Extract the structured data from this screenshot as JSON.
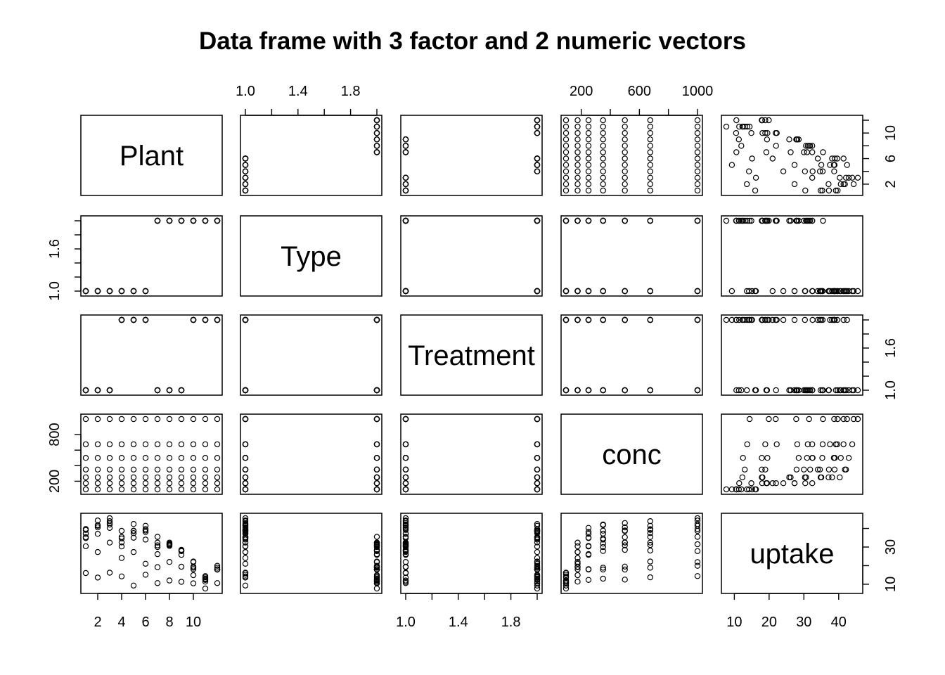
{
  "chart_data": {
    "type": "scatter",
    "title": "Data frame with 3 factor and 2 numeric vectors",
    "variables": [
      "Plant",
      "Type",
      "Treatment",
      "conc",
      "uptake"
    ],
    "ticks": {
      "Plant": [
        "2",
        "4",
        "6",
        "8",
        "10"
      ],
      "Type": [
        "1.0",
        "1.4",
        "1.8"
      ],
      "Type_left": [
        "1.0",
        "1.6"
      ],
      "Treatment": [
        "1.0",
        "1.4",
        "1.8"
      ],
      "Treatment_right": [
        "1.0",
        "1.6"
      ],
      "conc": [
        "200",
        "600",
        "1000"
      ],
      "conc_left": [
        "200",
        "800"
      ],
      "uptake": [
        "10",
        "20",
        "30",
        "40"
      ],
      "uptake_right": [
        "10",
        "30"
      ],
      "Plant_right": [
        "2",
        "6",
        "10"
      ]
    },
    "ranges": {
      "Plant": [
        1,
        12
      ],
      "Type": [
        1,
        2
      ],
      "Treatment": [
        1,
        2
      ],
      "conc": [
        95,
        1000
      ],
      "uptake": [
        7.7,
        45.5
      ]
    },
    "columns": {
      "Plant": [
        1,
        1,
        1,
        1,
        1,
        1,
        1,
        2,
        2,
        2,
        2,
        2,
        2,
        2,
        3,
        3,
        3,
        3,
        3,
        3,
        3,
        4,
        4,
        4,
        4,
        4,
        4,
        4,
        5,
        5,
        5,
        5,
        5,
        5,
        5,
        6,
        6,
        6,
        6,
        6,
        6,
        6,
        7,
        7,
        7,
        7,
        7,
        7,
        7,
        8,
        8,
        8,
        8,
        8,
        8,
        8,
        9,
        9,
        9,
        9,
        9,
        9,
        9,
        10,
        10,
        10,
        10,
        10,
        10,
        10,
        11,
        11,
        11,
        11,
        11,
        11,
        11,
        12,
        12,
        12,
        12,
        12,
        12,
        12
      ],
      "conc": [
        95,
        175,
        250,
        350,
        500,
        675,
        1000,
        95,
        175,
        250,
        350,
        500,
        675,
        1000,
        95,
        175,
        250,
        350,
        500,
        675,
        1000,
        95,
        175,
        250,
        350,
        500,
        675,
        1000,
        95,
        175,
        250,
        350,
        500,
        675,
        1000,
        95,
        175,
        250,
        350,
        500,
        675,
        1000,
        95,
        175,
        250,
        350,
        500,
        675,
        1000,
        95,
        175,
        250,
        350,
        500,
        675,
        1000,
        95,
        175,
        250,
        350,
        500,
        675,
        1000,
        95,
        175,
        250,
        350,
        500,
        675,
        1000,
        95,
        175,
        250,
        350,
        500,
        675,
        1000,
        95,
        175,
        250,
        350,
        500,
        675,
        1000
      ],
      "uptake": [
        16.0,
        30.4,
        34.8,
        37.2,
        35.3,
        39.2,
        39.7,
        13.6,
        27.3,
        37.1,
        41.8,
        40.6,
        41.4,
        44.3,
        16.2,
        32.4,
        40.3,
        42.1,
        42.9,
        43.9,
        45.5,
        14.2,
        24.1,
        30.3,
        34.6,
        32.5,
        35.4,
        38.7,
        9.3,
        27.3,
        35.0,
        38.8,
        38.6,
        37.5,
        42.4,
        15.1,
        21.0,
        38.1,
        34.0,
        38.9,
        39.6,
        41.4,
        10.6,
        19.2,
        26.2,
        30.0,
        30.9,
        32.4,
        35.5,
        12.0,
        22.0,
        30.6,
        31.8,
        32.4,
        31.1,
        31.5,
        11.3,
        19.4,
        25.8,
        27.9,
        28.5,
        28.1,
        27.8,
        10.5,
        14.9,
        18.1,
        18.9,
        19.5,
        22.2,
        21.9,
        7.7,
        11.4,
        12.3,
        13.0,
        12.5,
        13.7,
        14.4,
        10.6,
        18.0,
        17.9,
        17.9,
        17.9,
        18.9,
        19.9
      ]
    },
    "type_rule": "Type = 1 for Plant 1-6, 2 for Plant 7-12",
    "treatment_rule": "Treatment = 2 for Plant 4,5,6,10,11,12; 1 otherwise"
  }
}
